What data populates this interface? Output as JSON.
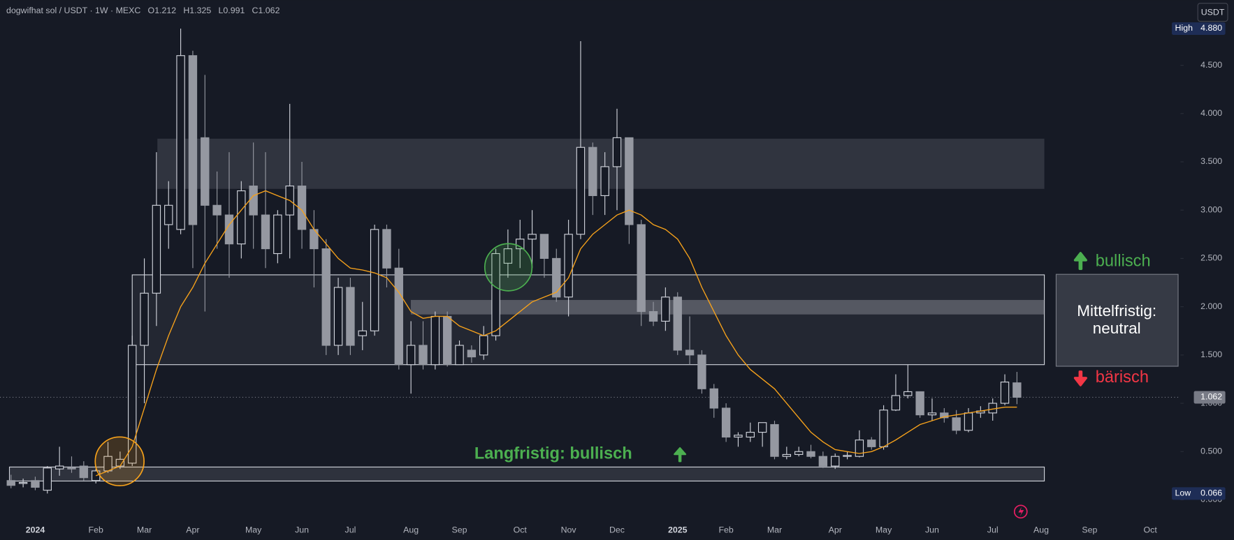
{
  "chart_data": {
    "type": "candlestick",
    "title": "dogwifhat sol / USDT · 1W · MEXC",
    "ohlc_labels": [
      "O",
      "H",
      "L",
      "C"
    ],
    "currency_button": "USDT",
    "categories": [
      null,
      null,
      "2024",
      null,
      null,
      null,
      null,
      "Feb",
      null,
      null,
      null,
      "Mar",
      null,
      null,
      null,
      "Apr",
      null,
      null,
      null,
      null,
      "May",
      null,
      null,
      null,
      "Jun",
      null,
      null,
      null,
      "Jul",
      null,
      null,
      null,
      null,
      "Aug",
      null,
      null,
      null,
      "Sep",
      null,
      null,
      null,
      null,
      "Oct",
      null,
      null,
      null,
      "Nov",
      null,
      null,
      null,
      "Dec",
      null,
      null,
      null,
      null,
      "2025",
      null,
      null,
      null,
      "Feb",
      null,
      null,
      null,
      "Mar",
      null,
      null,
      null,
      null,
      "Apr",
      null,
      null,
      null,
      "May",
      null,
      null,
      null,
      "Jun",
      null,
      null,
      null,
      null,
      "Jul",
      null,
      null,
      null,
      "Aug",
      null,
      null,
      null,
      "Sep",
      null,
      null,
      null,
      null,
      "Oct"
    ],
    "open": [
      0.2,
      0.17,
      0.2,
      0.1,
      0.32,
      0.33,
      0.35,
      0.2,
      0.3,
      0.35,
      0.38,
      1.6,
      2.14,
      2.85,
      2.8,
      4.6,
      3.75,
      3.05,
      2.95,
      2.65,
      3.25,
      2.95,
      2.55,
      2.95,
      3.25,
      2.8,
      2.6,
      1.6,
      2.2,
      1.7,
      1.75,
      2.8,
      2.4,
      1.4,
      1.6,
      1.4,
      1.9,
      1.4,
      1.55,
      1.5,
      1.7,
      2.45,
      2.6,
      2.7,
      2.75,
      2.5,
      2.1,
      2.75,
      3.65,
      3.15,
      3.45,
      3.75,
      2.85,
      1.95,
      1.85,
      2.1,
      1.55,
      1.5,
      1.15,
      0.95,
      0.65,
      0.65,
      0.7,
      0.78,
      0.45,
      0.47,
      0.5,
      0.45,
      0.35,
      0.45,
      0.45,
      0.62,
      0.55,
      0.93,
      1.08,
      1.12,
      0.88,
      0.9,
      0.85,
      0.72,
      0.9,
      0.9,
      1.0,
      1.212,
      null,
      null,
      null,
      null,
      null,
      null,
      null,
      null,
      null,
      null,
      null
    ],
    "high": [
      0.26,
      0.22,
      0.24,
      0.35,
      0.55,
      0.45,
      0.4,
      0.32,
      0.6,
      0.5,
      1.7,
      2.5,
      3.6,
      3.3,
      4.88,
      4.65,
      4.4,
      3.4,
      3.6,
      3.3,
      3.7,
      3.6,
      3.0,
      4.1,
      3.5,
      3.0,
      2.7,
      2.3,
      2.3,
      2.05,
      2.85,
      2.85,
      2.6,
      1.85,
      1.85,
      1.95,
      1.95,
      1.65,
      1.6,
      1.8,
      2.6,
      2.8,
      2.9,
      3.0,
      2.75,
      2.6,
      2.9,
      4.75,
      3.7,
      3.6,
      4.05,
      3.75,
      2.9,
      2.05,
      2.2,
      2.15,
      1.9,
      1.55,
      1.2,
      1.0,
      0.7,
      0.8,
      0.8,
      0.82,
      0.55,
      0.55,
      0.57,
      0.5,
      0.48,
      0.5,
      0.72,
      0.65,
      0.98,
      1.3,
      1.4,
      1.1,
      1.05,
      0.95,
      0.93,
      0.95,
      0.97,
      1.05,
      1.3,
      1.325,
      null,
      null,
      null,
      null,
      null,
      null,
      null,
      null,
      null,
      null,
      null
    ],
    "low": [
      0.12,
      0.13,
      0.1,
      0.066,
      0.25,
      0.28,
      0.2,
      0.17,
      0.28,
      0.32,
      0.35,
      1.0,
      1.8,
      2.6,
      2.75,
      2.4,
      1.95,
      2.6,
      2.3,
      2.5,
      2.6,
      2.4,
      2.45,
      2.5,
      2.6,
      2.2,
      1.5,
      1.5,
      1.5,
      1.55,
      1.7,
      2.2,
      1.35,
      1.1,
      1.35,
      1.35,
      1.38,
      1.4,
      1.42,
      1.45,
      1.65,
      2.3,
      2.4,
      2.4,
      2.3,
      2.05,
      1.9,
      2.7,
      2.95,
      2.95,
      3.0,
      2.65,
      1.8,
      1.8,
      1.75,
      1.5,
      1.4,
      1.1,
      0.85,
      0.6,
      0.55,
      0.6,
      0.55,
      0.42,
      0.42,
      0.45,
      0.43,
      0.33,
      0.32,
      0.42,
      0.44,
      0.52,
      0.52,
      0.92,
      1.05,
      0.85,
      0.82,
      0.8,
      0.68,
      0.7,
      0.85,
      0.82,
      0.98,
      0.991,
      null,
      null,
      null,
      null,
      null,
      null,
      null,
      null,
      null,
      null,
      null
    ],
    "close": [
      0.15,
      0.18,
      0.13,
      0.33,
      0.35,
      0.32,
      0.23,
      0.3,
      0.45,
      0.42,
      1.6,
      2.14,
      3.05,
      3.05,
      4.6,
      2.85,
      3.05,
      2.95,
      2.65,
      3.2,
      2.95,
      2.6,
      2.95,
      3.25,
      2.8,
      2.6,
      1.6,
      2.2,
      1.6,
      1.75,
      2.8,
      2.4,
      1.4,
      1.6,
      1.4,
      1.9,
      1.4,
      1.6,
      1.48,
      1.7,
      2.55,
      2.6,
      2.7,
      2.75,
      2.5,
      2.1,
      2.75,
      3.65,
      3.15,
      3.45,
      3.75,
      2.85,
      1.95,
      1.85,
      2.1,
      1.55,
      1.5,
      1.15,
      0.95,
      0.65,
      0.67,
      0.7,
      0.8,
      0.45,
      0.47,
      0.5,
      0.45,
      0.35,
      0.45,
      0.46,
      0.62,
      0.55,
      0.93,
      1.08,
      1.12,
      0.88,
      0.9,
      0.85,
      0.72,
      0.9,
      0.92,
      1.0,
      1.22,
      1.062,
      null,
      null,
      null,
      null,
      null,
      null,
      null,
      null,
      null,
      null,
      null
    ],
    "up_color": "#d1d4dc",
    "down_color": "#9598a1",
    "ma": {
      "color": "#f7a21b",
      "values": [
        null,
        null,
        null,
        null,
        null,
        null,
        null,
        0.25,
        0.3,
        0.35,
        0.55,
        0.95,
        1.35,
        1.7,
        2.0,
        2.2,
        2.45,
        2.65,
        2.85,
        3.0,
        3.15,
        3.2,
        3.15,
        3.1,
        3.0,
        2.8,
        2.65,
        2.5,
        2.4,
        2.38,
        2.35,
        2.3,
        2.15,
        1.95,
        1.88,
        1.9,
        1.9,
        1.8,
        1.75,
        1.7,
        1.75,
        1.85,
        1.95,
        2.05,
        2.1,
        2.15,
        2.3,
        2.6,
        2.75,
        2.85,
        2.95,
        3.0,
        2.95,
        2.85,
        2.8,
        2.7,
        2.5,
        2.2,
        1.95,
        1.7,
        1.5,
        1.35,
        1.25,
        1.15,
        1.0,
        0.85,
        0.7,
        0.6,
        0.52,
        0.5,
        0.48,
        0.5,
        0.55,
        0.62,
        0.7,
        0.78,
        0.82,
        0.86,
        0.88,
        0.9,
        0.92,
        0.94,
        0.96,
        0.96,
        null,
        null,
        null,
        null,
        null,
        null,
        null,
        null,
        null,
        null,
        null
      ]
    },
    "ylim": [
      -0.195,
      5.175
    ],
    "yticks": [
      {
        "value": 0,
        "label": "0.000"
      },
      {
        "value": 0.5,
        "label": "0.500"
      },
      {
        "value": 1,
        "label": "1.000"
      },
      {
        "value": 1.5,
        "label": "1.500"
      },
      {
        "value": 2,
        "label": "2.000"
      },
      {
        "value": 2.5,
        "label": "2.500"
      },
      {
        "value": 3,
        "label": "3.000"
      },
      {
        "value": 3.5,
        "label": "3.500"
      },
      {
        "value": 4,
        "label": "4.000"
      },
      {
        "value": 4.5,
        "label": "4.500"
      }
    ],
    "zones": [
      {
        "low": 3.22,
        "high": 3.74
      },
      {
        "low": 1.4,
        "high": 2.33
      },
      {
        "low": 1.92,
        "high": 2.07
      },
      {
        "low": 0.195,
        "high": 0.34
      }
    ],
    "high_marker": {
      "name": "High",
      "value": 4.88,
      "value_label": "4.880"
    },
    "low_marker": {
      "name": "Low",
      "value": 0.066,
      "value_label": "0.066"
    },
    "last_price": {
      "value": 1.062,
      "value_label": "1.062"
    },
    "annotations": {
      "bullish": "bullisch",
      "neutral": [
        "Mittelfristig:",
        "neutral"
      ],
      "bearish": "bärisch",
      "long_term": "Langfristig: bullisch"
    }
  }
}
